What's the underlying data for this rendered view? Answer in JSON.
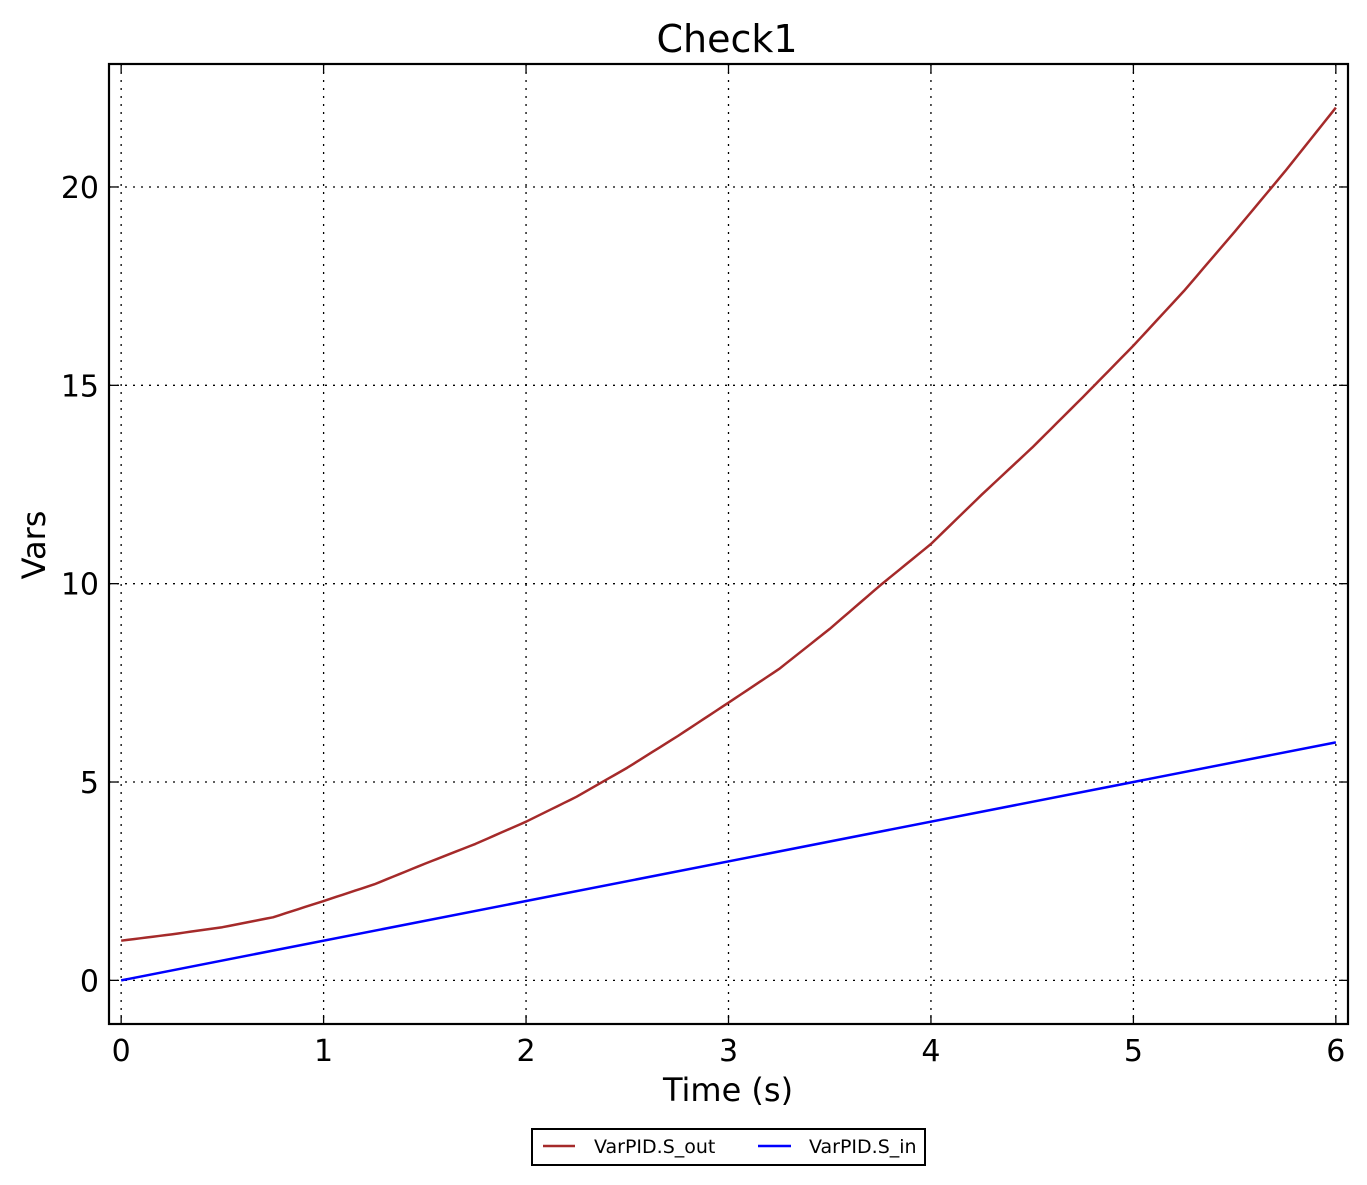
{
  "chart_data": {
    "type": "line",
    "title": "Check1",
    "xlabel": "Time (s)",
    "ylabel": "Vars",
    "xlim": [
      -0.06,
      6.06
    ],
    "ylim": [
      -1.1,
      23.1
    ],
    "xticks": [
      0,
      1,
      2,
      3,
      4,
      5,
      6
    ],
    "yticks": [
      0,
      5,
      10,
      15,
      20
    ],
    "grid": true,
    "legend_position": "bottom-center",
    "series": [
      {
        "name": "VarPID.S_out",
        "color": "#a52a2a",
        "x": [
          0,
          0.25,
          0.5,
          0.75,
          1,
          1.25,
          1.5,
          1.75,
          2,
          2.25,
          2.5,
          2.75,
          3,
          3.25,
          3.5,
          3.75,
          4,
          4.25,
          4.5,
          4.75,
          5,
          5.25,
          5.5,
          5.75,
          6
        ],
        "y": [
          1.0,
          1.16,
          1.34,
          1.59,
          2.0,
          2.42,
          2.94,
          3.44,
          4.0,
          4.63,
          5.36,
          6.16,
          7.0,
          7.85,
          8.86,
          9.96,
          11.0,
          12.24,
          13.43,
          14.7,
          16.0,
          17.38,
          18.87,
          20.4,
          22.0
        ]
      },
      {
        "name": "VarPID.S_in",
        "color": "#0000ff",
        "x": [
          0,
          6
        ],
        "y": [
          0,
          6
        ]
      }
    ]
  }
}
